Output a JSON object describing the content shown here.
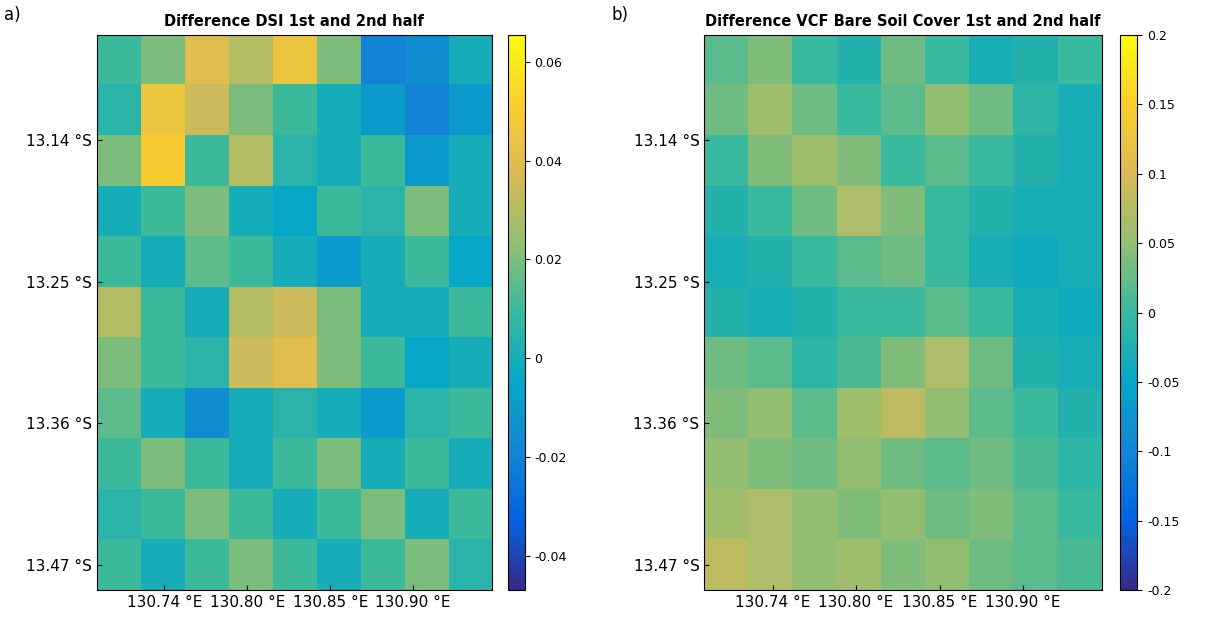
{
  "chart_data": [
    {
      "type": "heatmap",
      "panel_label": "a)",
      "title": "Difference DSI 1st and 2nd half",
      "xlim": [
        130.7,
        130.962
      ],
      "ylim": [
        -13.49,
        -13.058
      ],
      "xticks": [
        {
          "value": 130.745,
          "label": "130.74 °E"
        },
        {
          "value": 130.8,
          "label": "130.80 °E"
        },
        {
          "value": 130.855,
          "label": "130.85 °E"
        },
        {
          "value": 130.91,
          "label": "130.90 °E"
        }
      ],
      "yticks": [
        {
          "value": -13.14,
          "label": "13.14 °S"
        },
        {
          "value": -13.25,
          "label": "13.25 °S"
        },
        {
          "value": -13.36,
          "label": "13.36 °S"
        },
        {
          "value": -13.47,
          "label": "13.47 °S"
        }
      ],
      "cells": [
        [
          0.01,
          0.02,
          0.04,
          0.03,
          0.045,
          0.02,
          -0.02,
          -0.015,
          0.0
        ],
        [
          0.005,
          0.045,
          0.035,
          0.02,
          0.01,
          0.0,
          -0.01,
          -0.02,
          -0.01
        ],
        [
          0.02,
          0.05,
          0.01,
          0.03,
          0.005,
          0.0,
          0.01,
          -0.01,
          0.0
        ],
        [
          0.0,
          0.01,
          0.02,
          0.0,
          -0.005,
          0.01,
          0.005,
          0.02,
          0.0
        ],
        [
          0.01,
          0.0,
          0.015,
          0.01,
          0.0,
          -0.01,
          0.0,
          0.01,
          -0.005
        ],
        [
          0.03,
          0.01,
          0.0,
          0.03,
          0.035,
          0.02,
          0.0,
          0.0,
          0.01
        ],
        [
          0.02,
          0.01,
          0.005,
          0.035,
          0.04,
          0.02,
          0.01,
          -0.005,
          0.0
        ],
        [
          0.015,
          0.0,
          -0.015,
          0.0,
          0.005,
          0.0,
          -0.01,
          0.005,
          0.01
        ],
        [
          0.01,
          0.02,
          0.01,
          0.0,
          0.01,
          0.02,
          0.0,
          0.01,
          0.0
        ],
        [
          0.005,
          0.01,
          0.02,
          0.01,
          0.0,
          0.01,
          0.02,
          0.0,
          0.01
        ],
        [
          0.01,
          0.0,
          0.01,
          0.02,
          0.01,
          0.0,
          0.01,
          0.02,
          0.005
        ]
      ],
      "colorbar_lim": [
        -0.047,
        0.0655
      ],
      "colorbar_ticks": [
        -0.04,
        -0.02,
        0,
        0.02,
        0.04,
        0.06
      ]
    },
    {
      "type": "heatmap",
      "panel_label": "b)",
      "title": "Difference VCF Bare Soil Cover 1st and 2nd half",
      "xlim": [
        130.7,
        130.962
      ],
      "ylim": [
        -13.49,
        -13.058
      ],
      "xticks": [
        {
          "value": 130.745,
          "label": "130.74 °E"
        },
        {
          "value": 130.8,
          "label": "130.80 °E"
        },
        {
          "value": 130.855,
          "label": "130.85 °E"
        },
        {
          "value": 130.91,
          "label": "130.90 °E"
        }
      ],
      "yticks": [
        {
          "value": -13.14,
          "label": "13.14 °S"
        },
        {
          "value": -13.25,
          "label": "13.25 °S"
        },
        {
          "value": -13.36,
          "label": "13.36 °S"
        },
        {
          "value": -13.47,
          "label": "13.47 °S"
        }
      ],
      "cells": [
        [
          0.02,
          0.04,
          0.0,
          -0.02,
          0.03,
          0.0,
          -0.03,
          -0.02,
          0.0
        ],
        [
          0.03,
          0.06,
          0.03,
          0.0,
          0.02,
          0.05,
          0.03,
          -0.01,
          -0.03
        ],
        [
          0.0,
          0.04,
          0.06,
          0.04,
          0.0,
          0.02,
          0.0,
          -0.02,
          -0.03
        ],
        [
          -0.02,
          0.0,
          0.03,
          0.07,
          0.04,
          0.0,
          -0.02,
          -0.03,
          -0.03
        ],
        [
          -0.03,
          -0.02,
          0.0,
          0.02,
          0.03,
          0.0,
          -0.03,
          -0.04,
          -0.03
        ],
        [
          -0.02,
          -0.03,
          -0.02,
          0.0,
          0.0,
          0.02,
          0.0,
          -0.03,
          -0.04
        ],
        [
          0.03,
          0.02,
          -0.01,
          0.01,
          0.04,
          0.07,
          0.03,
          -0.02,
          -0.03
        ],
        [
          0.04,
          0.05,
          0.02,
          0.06,
          0.08,
          0.05,
          0.02,
          0.0,
          -0.02
        ],
        [
          0.05,
          0.04,
          0.03,
          0.05,
          0.03,
          0.02,
          0.03,
          0.01,
          -0.01
        ],
        [
          0.06,
          0.07,
          0.05,
          0.04,
          0.05,
          0.03,
          0.04,
          0.02,
          0.0
        ],
        [
          0.08,
          0.07,
          0.05,
          0.06,
          0.04,
          0.05,
          0.03,
          0.02,
          0.01
        ]
      ],
      "colorbar_lim": [
        -0.2,
        0.2
      ],
      "colorbar_ticks": [
        -0.2,
        -0.15,
        -0.1,
        -0.05,
        0,
        0.05,
        0.1,
        0.15,
        0.2
      ]
    }
  ]
}
